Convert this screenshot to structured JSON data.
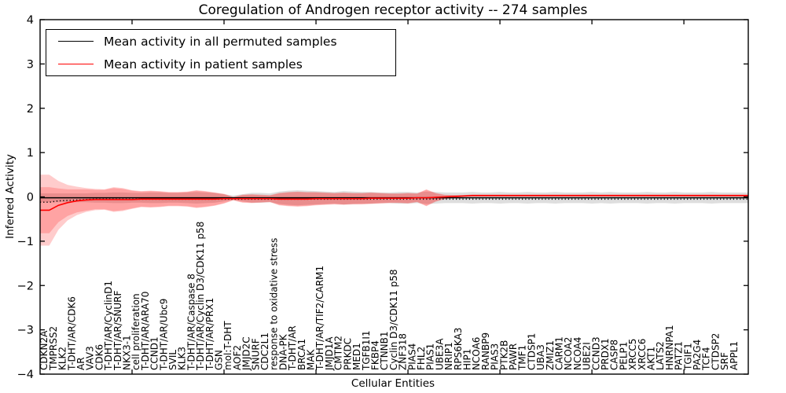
{
  "figure": {
    "title": "Coregulation of Androgen receptor activity -- 274 samples",
    "xlabel": "Cellular Entities",
    "ylabel": "Inferred Activity"
  },
  "legend": {
    "entries": [
      {
        "label": "Mean activity in all permuted samples",
        "color": "#000000"
      },
      {
        "label": "Mean activity in patient samples",
        "color": "#ff0000"
      }
    ]
  },
  "colors": {
    "permuted_line": "#000000",
    "patient_line": "#ff0000",
    "permuted_band": "rgba(0,0,0,0.13)",
    "patient_band": "rgba(255,0,0,0.20)",
    "background": "#ffffff",
    "axis": "#000000"
  },
  "chart_data": {
    "type": "line",
    "title": "Coregulation of Androgen receptor activity -- 274 samples",
    "xlabel": "Cellular Entities",
    "ylabel": "Inferred Activity",
    "ylim": [
      -4,
      4
    ],
    "yticks": [
      -4,
      -3,
      -2,
      -1,
      0,
      1,
      2,
      3,
      4
    ],
    "xtick_interval": 10,
    "grid": false,
    "legend_position": "upper left",
    "categories": [
      "CDKN2A",
      "TMPRSS2",
      "KLK2",
      "T-DHT/AR/CDK6",
      "AR",
      "VAV3",
      "CDK6",
      "T-DHT/AR/CyclinD1",
      "T-DHT/AR/SNURF",
      "NKX3-1",
      "cell proliferation",
      "T-DHT/AR/ARA70",
      "CCND1",
      "T-DHT/AR/Ubc9",
      "SVIL",
      "KLK3",
      "T-DHT/AR/Caspase 8",
      "T-DHT/AR/Cyclin D3/CDK11 p58",
      "T-DHT/AR/PRX1",
      "GSN",
      "mol:T-DHT",
      "AOF2",
      "JMJD2C",
      "SNURF",
      "CDC2L1",
      "response to oxidative stress",
      "DNA-PK",
      "T-DHT/AR",
      "BRCA1",
      "MAK",
      "T-DHT/AR/TIF2/CARM1",
      "JMJD1A",
      "CMTM2",
      "PRKDC",
      "MED1",
      "TGFB1I1",
      "FKBP4",
      "CTNNB1",
      "Cyclin D3/CDK11 p58",
      "ZNF318",
      "PIAS4",
      "FHL2",
      "PIAS1",
      "UBE3A",
      "NRIP1",
      "RPS6KA3",
      "HIP1",
      "NCOA6",
      "RANBP9",
      "PIAS3",
      "PTK2B",
      "PAWR",
      "TMF1",
      "CTDSP1",
      "UBA3",
      "ZMIZ1",
      "CARM1",
      "NCOA2",
      "NCOA4",
      "UBE2I",
      "CCND3",
      "PRDX1",
      "CASP8",
      "PELP1",
      "XRCC5",
      "XRCC6",
      "AKT1",
      "LATS2",
      "HNRNPA1",
      "PATZ1",
      "TGIF1",
      "PA2G4",
      "TCF4",
      "CTDSP2",
      "SRF",
      "APPL1"
    ],
    "series": [
      {
        "name": "Mean activity in all permuted samples",
        "color": "#000000",
        "style": "solid",
        "values": [
          -0.02,
          -0.02,
          -0.02,
          -0.02,
          -0.02,
          -0.02,
          -0.02,
          -0.02,
          -0.02,
          -0.02,
          -0.02,
          -0.02,
          -0.02,
          -0.02,
          -0.02,
          -0.02,
          -0.02,
          -0.02,
          -0.02,
          -0.02,
          -0.02,
          -0.02,
          -0.02,
          -0.02,
          -0.02,
          -0.02,
          -0.02,
          -0.02,
          -0.02,
          -0.02,
          -0.02,
          -0.02,
          -0.02,
          -0.02,
          -0.02,
          -0.02,
          -0.02,
          -0.02,
          -0.02,
          -0.02,
          -0.02,
          -0.02,
          -0.02,
          -0.02,
          -0.02,
          -0.02,
          -0.02,
          -0.02,
          -0.02,
          -0.02,
          -0.02,
          -0.02,
          -0.02,
          -0.02,
          -0.02,
          -0.02,
          -0.02,
          -0.02,
          -0.02,
          -0.02,
          -0.02,
          -0.02,
          -0.02,
          -0.02,
          -0.02,
          -0.02,
          -0.02,
          -0.02,
          -0.02,
          -0.02,
          -0.02,
          -0.02,
          -0.02,
          -0.02,
          -0.02,
          -0.02
        ],
        "band_halfwidth": [
          0.1,
          0.1,
          0.1,
          0.1,
          0.1,
          0.11,
          0.11,
          0.12,
          0.12,
          0.11,
          0.11,
          0.12,
          0.12,
          0.11,
          0.11,
          0.12,
          0.13,
          0.12,
          0.11,
          0.08,
          0.05,
          0.08,
          0.11,
          0.11,
          0.1,
          0.14,
          0.16,
          0.17,
          0.16,
          0.15,
          0.14,
          0.13,
          0.15,
          0.14,
          0.13,
          0.13,
          0.12,
          0.12,
          0.13,
          0.13,
          0.12,
          0.14,
          0.13,
          0.12,
          0.12,
          0.12,
          0.13,
          0.12,
          0.12,
          0.13,
          0.12,
          0.12,
          0.13,
          0.12,
          0.12,
          0.13,
          0.12,
          0.12,
          0.12,
          0.13,
          0.12,
          0.13,
          0.12,
          0.12,
          0.12,
          0.13,
          0.12,
          0.12,
          0.13,
          0.12,
          0.12,
          0.12,
          0.13,
          0.12,
          0.12,
          0.12
        ]
      },
      {
        "name": "permuted trend (dotted)",
        "color": "#000000",
        "style": "dotted",
        "values": [
          -0.12,
          -0.09,
          -0.08,
          -0.07,
          -0.06,
          -0.05,
          -0.05,
          -0.05,
          -0.05,
          -0.05,
          -0.05,
          -0.05,
          -0.05,
          -0.05,
          -0.05,
          -0.05,
          -0.05,
          -0.05,
          -0.05,
          -0.05,
          -0.05,
          -0.05,
          -0.05,
          -0.05,
          -0.05,
          -0.05,
          -0.05,
          -0.05,
          -0.05,
          -0.05,
          -0.05,
          -0.05,
          -0.05,
          -0.05,
          -0.05,
          -0.05,
          -0.05,
          -0.05,
          -0.05,
          -0.05,
          -0.05,
          -0.05,
          -0.05,
          -0.05,
          -0.05,
          -0.05,
          -0.05,
          -0.05,
          -0.05,
          -0.05,
          -0.05,
          -0.05,
          -0.05,
          -0.05,
          -0.05,
          -0.05,
          -0.05,
          -0.05,
          -0.05,
          -0.05,
          -0.05,
          -0.05,
          -0.05,
          -0.05,
          -0.05,
          -0.05,
          -0.05,
          -0.05,
          -0.05,
          -0.05,
          -0.05,
          -0.05,
          -0.05,
          -0.05,
          -0.05,
          -0.05
        ]
      },
      {
        "name": "Mean activity in patient samples",
        "color": "#ff0000",
        "style": "solid",
        "values": [
          -0.3,
          -0.19,
          -0.13,
          -0.09,
          -0.07,
          -0.06,
          -0.06,
          -0.06,
          -0.06,
          -0.06,
          -0.05,
          -0.05,
          -0.05,
          -0.05,
          -0.05,
          -0.05,
          -0.05,
          -0.05,
          -0.05,
          -0.04,
          -0.04,
          -0.04,
          -0.04,
          -0.04,
          -0.04,
          -0.05,
          -0.05,
          -0.05,
          -0.05,
          -0.04,
          -0.04,
          -0.04,
          -0.04,
          -0.04,
          -0.04,
          -0.03,
          -0.03,
          -0.03,
          -0.03,
          -0.03,
          -0.02,
          -0.02,
          -0.01,
          0.0,
          0.01,
          0.02,
          0.03,
          0.03,
          0.03,
          0.03,
          0.03,
          0.03,
          0.03,
          0.03,
          0.03,
          0.03,
          0.03,
          0.03,
          0.03,
          0.03,
          0.03,
          0.03,
          0.03,
          0.03,
          0.03,
          0.03,
          0.03,
          0.03,
          0.03,
          0.03,
          0.03,
          0.03,
          0.03,
          0.03,
          0.03,
          0.03
        ],
        "band_halfwidth": [
          0.52,
          0.38,
          0.3,
          0.26,
          0.24,
          0.22,
          0.22,
          0.26,
          0.24,
          0.2,
          0.17,
          0.18,
          0.17,
          0.15,
          0.15,
          0.16,
          0.19,
          0.17,
          0.14,
          0.1,
          0.03,
          0.08,
          0.09,
          0.08,
          0.07,
          0.13,
          0.15,
          0.16,
          0.15,
          0.14,
          0.13,
          0.12,
          0.13,
          0.12,
          0.12,
          0.12,
          0.11,
          0.1,
          0.1,
          0.11,
          0.09,
          0.18,
          0.09,
          0.04,
          0.03,
          0.02,
          0.02,
          0.02,
          0.02,
          0.02,
          0.02,
          0.02,
          0.02,
          0.02,
          0.02,
          0.02,
          0.02,
          0.02,
          0.02,
          0.02,
          0.02,
          0.02,
          0.02,
          0.02,
          0.02,
          0.02,
          0.02,
          0.02,
          0.02,
          0.02,
          0.02,
          0.02,
          0.02,
          0.02,
          0.02,
          0.02
        ],
        "band_halfwidth_outer": [
          0.8,
          0.55,
          0.4,
          0.32,
          0.27,
          0.24,
          0.23,
          0.28,
          0.26,
          0.21,
          0.18,
          0.19,
          0.18,
          0.16,
          0.16,
          0.17,
          0.2,
          0.18,
          0.15,
          0.11,
          0.04,
          0.09,
          0.1,
          0.09,
          0.08,
          0.14,
          0.16,
          0.17,
          0.16,
          0.15,
          0.14,
          0.13,
          0.14,
          0.13,
          0.13,
          0.13,
          0.12,
          0.11,
          0.11,
          0.12,
          0.1,
          0.19,
          0.1,
          0.05,
          0.03,
          0.02,
          0.02,
          0.02,
          0.02,
          0.02,
          0.02,
          0.02,
          0.02,
          0.02,
          0.02,
          0.02,
          0.02,
          0.02,
          0.02,
          0.02,
          0.02,
          0.02,
          0.02,
          0.02,
          0.02,
          0.02,
          0.02,
          0.02,
          0.02,
          0.02,
          0.02,
          0.02,
          0.02,
          0.02,
          0.02,
          0.02
        ]
      }
    ]
  }
}
